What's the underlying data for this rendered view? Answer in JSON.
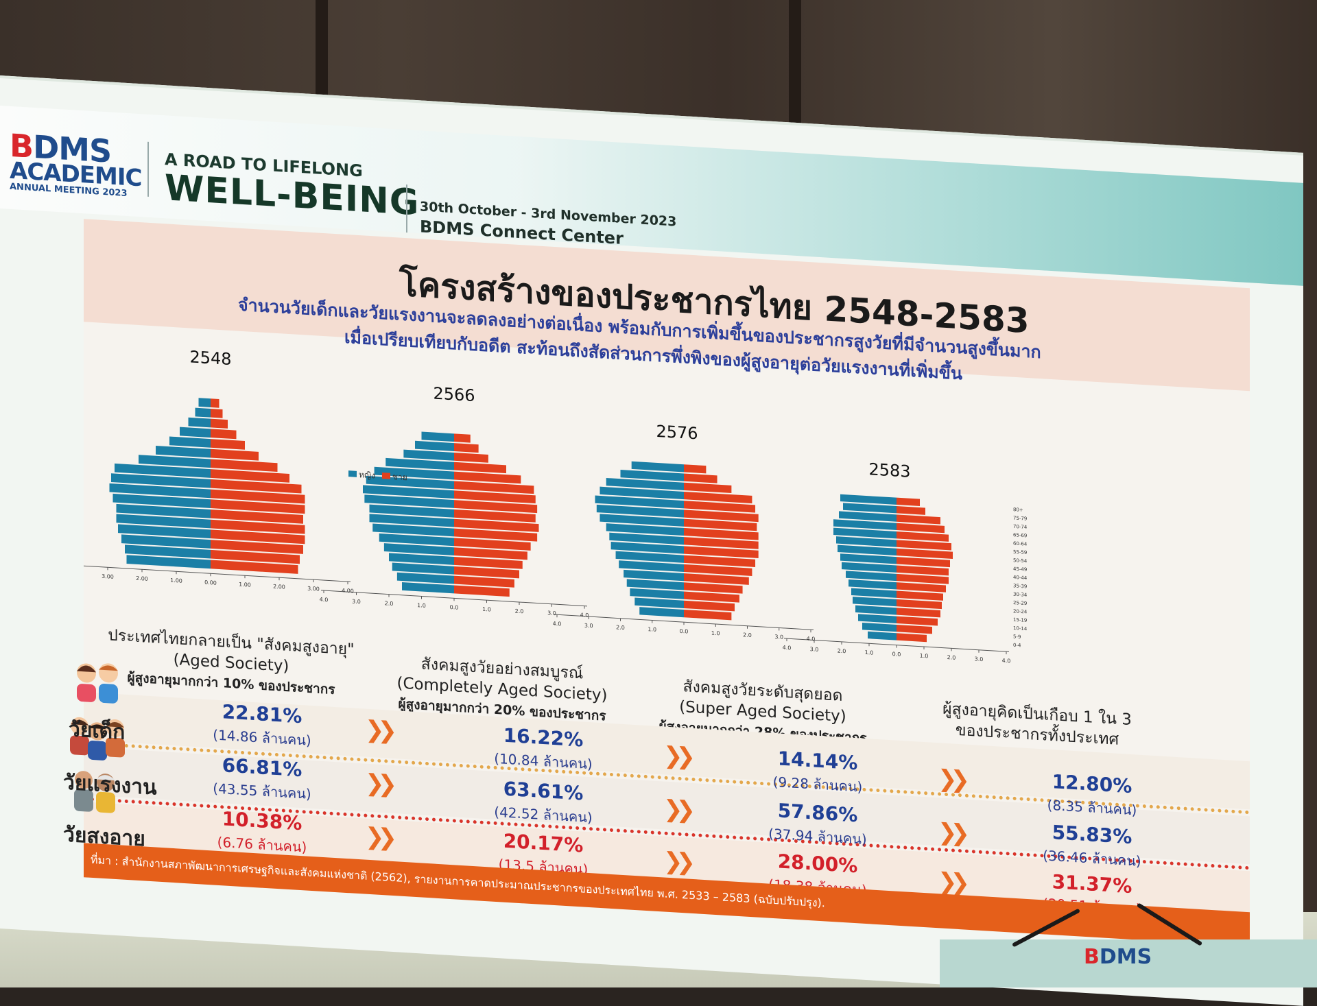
{
  "header": {
    "logo_main_b": "B",
    "logo_main_rest": "DMS",
    "logo_sub": "ACADEMIC",
    "logo_meeting": "ANNUAL MEETING 2023",
    "tagline_small": "A ROAD TO LIFELONG",
    "tagline_big": "WELL-BEING",
    "date": "30th October - 3rd November 2023",
    "venue": "BDMS Connect Center"
  },
  "slide": {
    "title": "โครงสร้างของประชากรไทย 2548-2583",
    "subtitle_line1": "จำนวนวัยเด็กและวัยแรงงานจะลดลงอย่างต่อเนื่อง พร้อมกับการเพิ่มขึ้นของประชากรสูงวัยที่มีจำนวนสูงขึ้นมาก",
    "subtitle_line2": "เมื่อเปรียบเทียบกับอดีต สะท้อนถึงสัดส่วนการพึ่งพิงของผู้สูงอายุต่อวัยแรงงานที่เพิ่มขึ้น",
    "legend_female": "หญิง",
    "legend_male": "ชาย",
    "stages": [
      {
        "line1": "ประเทศไทยกลายเป็น \"สังคมสูงอายุ\"",
        "line2": "(Aged Society)",
        "line3": "ผู้สูงอายุมากกว่า 10% ของประชากร"
      },
      {
        "line1": "สังคมสูงวัยอย่างสมบูรณ์",
        "line2": "(Completely Aged Society)",
        "line3": "ผู้สูงอายุมากกว่า 20% ของประชากร"
      },
      {
        "line1": "สังคมสูงวัยระดับสุดยอด",
        "line2": "(Super Aged Society)",
        "line3": "ผู้สูงอายุมากกว่า 28% ของประชากร"
      },
      {
        "line1": "ผู้สูงอายุคิดเป็นเกือบ 1 ใน 3",
        "line2": "ของประชากรทั้งประเทศ",
        "line3": ""
      }
    ],
    "rows": [
      {
        "label": "วัยเด็ก",
        "color": "#1f3f95",
        "values": [
          {
            "pct": "22.81%",
            "count": "(14.86 ล้านคน)"
          },
          {
            "pct": "16.22%",
            "count": "(10.84 ล้านคน)"
          },
          {
            "pct": "14.14%",
            "count": "(9.28 ล้านคน)"
          },
          {
            "pct": "12.80%",
            "count": "(8.35 ล้านคน)"
          }
        ]
      },
      {
        "label": "วัยแรงงาน",
        "color": "#1f3f95",
        "values": [
          {
            "pct": "66.81%",
            "count": "(43.55 ล้านคน)"
          },
          {
            "pct": "63.61%",
            "count": "(42.52 ล้านคน)"
          },
          {
            "pct": "57.86%",
            "count": "(37.94 ล้านคน)"
          },
          {
            "pct": "55.83%",
            "count": "(36.46 ล้านคน)"
          }
        ]
      },
      {
        "label": "วัยสูงอายุ",
        "color": "#d2202a",
        "values": [
          {
            "pct": "10.38%",
            "count": "(6.76 ล้านคน)"
          },
          {
            "pct": "20.17%",
            "count": "(13.5 ล้านคน)"
          },
          {
            "pct": "28.00%",
            "count": "(18.38 ล้านคน)"
          },
          {
            "pct": "31.37%",
            "count": "(20.51 ล้านคน)"
          }
        ]
      }
    ],
    "source": "ที่มา : สำนักงานสภาพัฒนาการเศรษฐกิจและสังคมแห่งชาติ (2562), รายงานการคาดประมาณประชากรของประเทศไทย พ.ศ. 2533 – 2583 (ฉบับปรับปรุง)."
  },
  "stand_logo_b": "B",
  "stand_logo_rest": "DMS",
  "chart_data": [
    {
      "type": "bar",
      "orientation": "horizontal-pyramid",
      "title": "2548",
      "categories": [
        "0-4",
        "5-9",
        "10-14",
        "15-19",
        "20-24",
        "25-29",
        "30-34",
        "35-39",
        "40-44",
        "45-49",
        "50-54",
        "55-59",
        "60-64",
        "65-69",
        "70-74",
        "75-79",
        "80+"
      ],
      "xlim": [
        -4,
        4
      ],
      "xticks": [
        "4.00",
        "3.00",
        "2.00",
        "1.00",
        "0.00",
        "1.00",
        "2.00",
        "3.00",
        "4.00"
      ],
      "series": [
        {
          "name": "หญิง",
          "color": "#1b7fa6",
          "values": [
            2.45,
            2.5,
            2.6,
            2.7,
            2.75,
            2.75,
            2.85,
            2.95,
            2.9,
            2.8,
            2.1,
            1.6,
            1.2,
            0.9,
            0.65,
            0.45,
            0.35
          ]
        },
        {
          "name": "ชาย",
          "color": "#e2401e",
          "values": [
            2.55,
            2.6,
            2.7,
            2.75,
            2.75,
            2.7,
            2.75,
            2.75,
            2.65,
            2.3,
            1.95,
            1.4,
            1.0,
            0.75,
            0.5,
            0.35,
            0.25
          ]
        }
      ]
    },
    {
      "type": "bar",
      "orientation": "horizontal-pyramid",
      "title": "2566",
      "categories": [
        "0-4",
        "5-9",
        "10-14",
        "15-19",
        "20-24",
        "25-29",
        "30-34",
        "35-39",
        "40-44",
        "45-49",
        "50-54",
        "55-59",
        "60-64",
        "65-69",
        "70-74",
        "75-79",
        "80+"
      ],
      "xlim": [
        -4,
        4
      ],
      "xticks": [
        "4.0",
        "3.0",
        "2.0",
        "1.0",
        "0.0",
        "1.0",
        "2.0",
        "3.0",
        "4.0"
      ],
      "series": [
        {
          "name": "หญิง",
          "color": "#1b7fa6",
          "values": [
            1.6,
            1.75,
            1.9,
            2.0,
            2.15,
            2.3,
            2.5,
            2.6,
            2.6,
            2.75,
            2.8,
            2.7,
            2.45,
            2.1,
            1.55,
            1.2,
            1.0
          ]
        },
        {
          "name": "ชาย",
          "color": "#e2401e",
          "values": [
            1.7,
            1.85,
            2.0,
            2.1,
            2.25,
            2.35,
            2.55,
            2.6,
            2.5,
            2.55,
            2.5,
            2.45,
            2.05,
            1.6,
            1.05,
            0.75,
            0.5
          ]
        }
      ]
    },
    {
      "type": "bar",
      "orientation": "horizontal-pyramid",
      "title": "2576",
      "categories": [
        "0-4",
        "5-9",
        "10-14",
        "15-19",
        "20-24",
        "25-29",
        "30-34",
        "35-39",
        "40-44",
        "45-49",
        "50-54",
        "55-59",
        "60-64",
        "65-69",
        "70-74",
        "75-79",
        "80+"
      ],
      "xlim": [
        -4,
        4
      ],
      "xticks": [
        "4.0",
        "3.0",
        "2.0",
        "1.0",
        "0.0",
        "1.0",
        "2.0",
        "3.0",
        "4.0"
      ],
      "series": [
        {
          "name": "หญิง",
          "color": "#1b7fa6",
          "values": [
            1.4,
            1.55,
            1.7,
            1.8,
            1.9,
            2.05,
            2.15,
            2.3,
            2.35,
            2.45,
            2.65,
            2.75,
            2.8,
            2.65,
            2.45,
            2.0,
            1.65
          ]
        },
        {
          "name": "ชาย",
          "color": "#e2401e",
          "values": [
            1.5,
            1.6,
            1.75,
            1.85,
            2.05,
            2.15,
            2.25,
            2.35,
            2.35,
            2.35,
            2.3,
            2.35,
            2.25,
            2.15,
            1.5,
            1.05,
            0.7
          ]
        }
      ]
    },
    {
      "type": "bar",
      "orientation": "horizontal-pyramid",
      "title": "2583",
      "categories": [
        "0-4",
        "5-9",
        "10-14",
        "15-19",
        "20-24",
        "25-29",
        "30-34",
        "35-39",
        "40-44",
        "45-49",
        "50-54",
        "55-59",
        "60-64",
        "65-69",
        "70-74",
        "75-79",
        "80+"
      ],
      "xlim": [
        -4,
        4
      ],
      "xticks": [
        "4.0",
        "3.0",
        "2.0",
        "1.0",
        "0.0",
        "1.0",
        "2.0",
        "3.0",
        "4.0"
      ],
      "series": [
        {
          "name": "หญิง",
          "color": "#1b7fa6",
          "values": [
            1.05,
            1.25,
            1.4,
            1.5,
            1.6,
            1.65,
            1.75,
            1.85,
            2.0,
            2.05,
            2.15,
            2.2,
            2.3,
            2.3,
            2.1,
            1.95,
            2.05
          ]
        },
        {
          "name": "ชาย",
          "color": "#e2401e",
          "values": [
            1.1,
            1.3,
            1.5,
            1.6,
            1.65,
            1.7,
            1.8,
            1.9,
            1.9,
            1.95,
            2.05,
            2.0,
            1.9,
            1.75,
            1.6,
            1.05,
            0.85
          ]
        }
      ]
    }
  ]
}
